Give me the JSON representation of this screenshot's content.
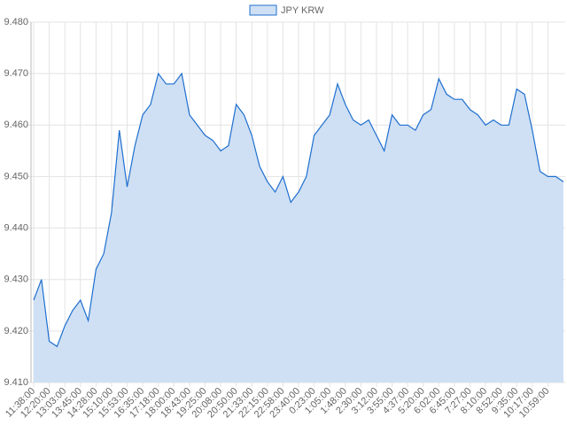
{
  "chart_data": {
    "type": "area",
    "series": [
      {
        "name": "JPY KRW",
        "color": "#1f6fcf",
        "fill": "#cfe0f4",
        "values": [
          9.426,
          9.43,
          9.418,
          9.417,
          9.421,
          9.424,
          9.426,
          9.422,
          9.432,
          9.435,
          9.443,
          9.459,
          9.448,
          9.456,
          9.462,
          9.464,
          9.47,
          9.468,
          9.468,
          9.47,
          9.462,
          9.46,
          9.458,
          9.457,
          9.455,
          9.456,
          9.464,
          9.462,
          9.458,
          9.452,
          9.449,
          9.447,
          9.45,
          9.445,
          9.447,
          9.45,
          9.458,
          9.46,
          9.462,
          9.468,
          9.464,
          9.461,
          9.46,
          9.461,
          9.458,
          9.455,
          9.462,
          9.46,
          9.46,
          9.459,
          9.462,
          9.463,
          9.469,
          9.466,
          9.465,
          9.465,
          9.463,
          9.462,
          9.46,
          9.461,
          9.46,
          9.46,
          9.467,
          9.466,
          9.459,
          9.451,
          9.45,
          9.45,
          9.449
        ]
      }
    ],
    "categories": [
      "11:38:00",
      null,
      "12:20:00",
      null,
      "13:03:00",
      null,
      "13:45:00",
      null,
      "14:28:00",
      null,
      "15:10:00",
      null,
      "15:53:00",
      null,
      "16:35:00",
      null,
      "17:18:00",
      null,
      "18:00:00",
      null,
      "18:43:00",
      null,
      "19:25:00",
      null,
      "20:08:00",
      null,
      "20:50:00",
      null,
      "21:33:00",
      null,
      "22:15:00",
      null,
      "22:58:00",
      null,
      "23:40:00",
      null,
      "0:23:00",
      null,
      "1:05:00",
      null,
      "1:48:00",
      null,
      "2:30:00",
      null,
      "3:12:00",
      null,
      "3:55:00",
      null,
      "4:37:00",
      null,
      "5:20:00",
      null,
      "6:02:00",
      null,
      "6:45:00",
      null,
      "7:27:00",
      null,
      "8:10:00",
      null,
      "8:52:00",
      null,
      "9:35:00",
      null,
      "10:17:00",
      null,
      "10:59:00",
      null,
      null
    ],
    "ylim": [
      9.41,
      9.48
    ],
    "yticks": [
      {
        "value": 9.41,
        "label": "9.410"
      },
      {
        "value": 9.42,
        "label": "9.420"
      },
      {
        "value": 9.43,
        "label": "9.430"
      },
      {
        "value": 9.44,
        "label": "9.440"
      },
      {
        "value": 9.45,
        "label": "9.450"
      },
      {
        "value": 9.46,
        "label": "9.460"
      },
      {
        "value": 9.47,
        "label": "9.470"
      },
      {
        "value": 9.48,
        "label": "9.480"
      }
    ],
    "grid": true,
    "legend": "top"
  }
}
